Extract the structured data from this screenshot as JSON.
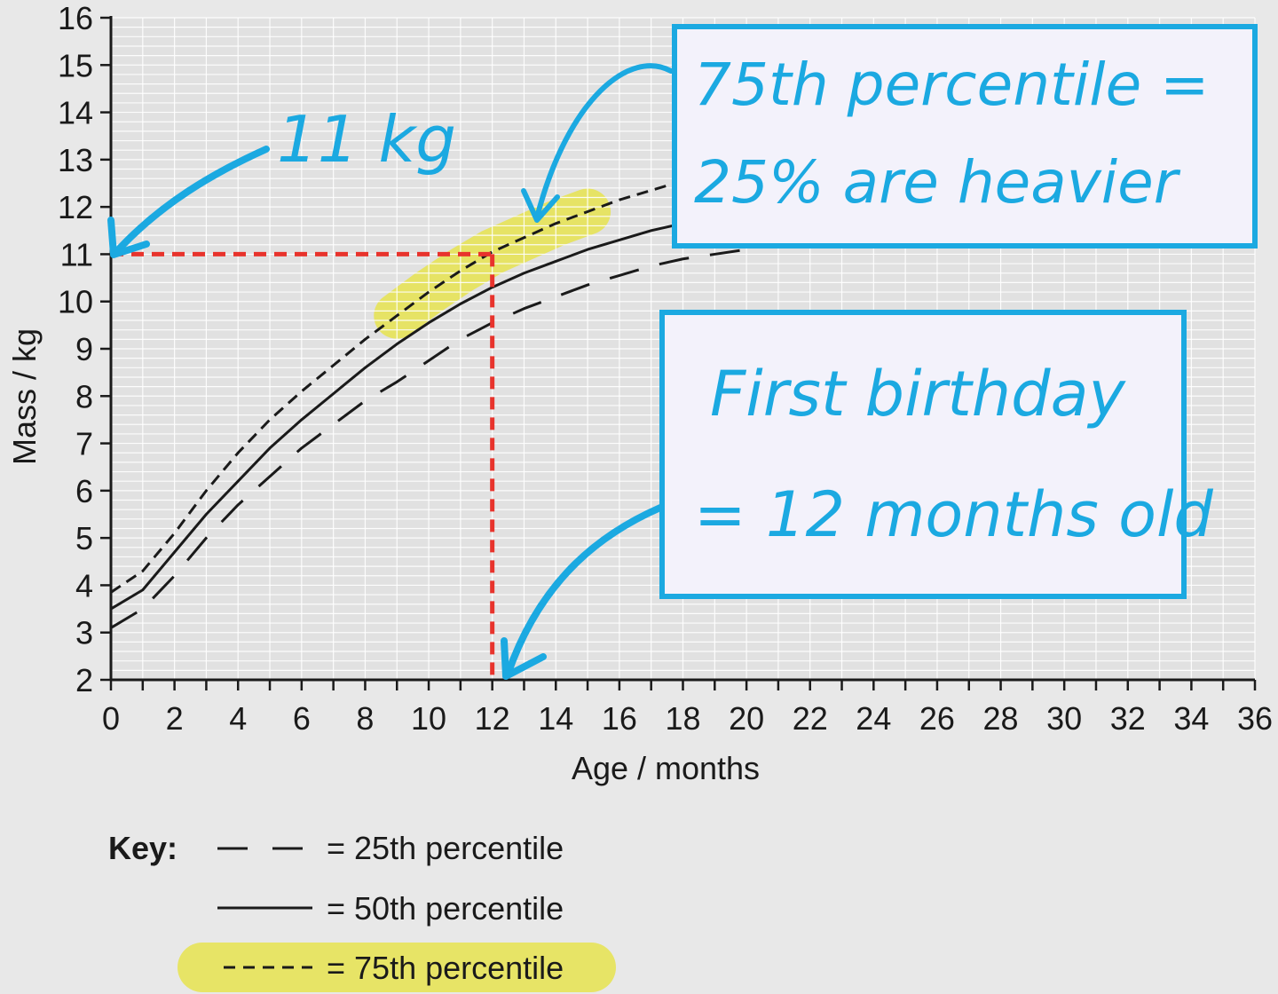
{
  "chart_data": {
    "type": "line",
    "title": "",
    "xlabel": "Age / months",
    "ylabel": "Mass / kg",
    "xlim": [
      0,
      36
    ],
    "ylim": [
      2,
      16
    ],
    "x_ticks": [
      0,
      2,
      4,
      6,
      8,
      10,
      12,
      14,
      16,
      18,
      20,
      22,
      24,
      26,
      28,
      30,
      32,
      34,
      36
    ],
    "y_ticks": [
      2,
      3,
      4,
      5,
      6,
      7,
      8,
      9,
      10,
      11,
      12,
      13,
      14,
      15,
      16
    ],
    "grid": true,
    "series": [
      {
        "name": "25th percentile",
        "style": "long-dash",
        "x": [
          0,
          1,
          2,
          3,
          4,
          5,
          6,
          7,
          8,
          9,
          10,
          11,
          12,
          13,
          14,
          15,
          16,
          17,
          18,
          19,
          20
        ],
        "y": [
          3.1,
          3.5,
          4.2,
          5.0,
          5.7,
          6.3,
          6.9,
          7.4,
          7.9,
          8.3,
          8.75,
          9.2,
          9.55,
          9.85,
          10.1,
          10.35,
          10.55,
          10.75,
          10.9,
          11.0,
          11.1
        ]
      },
      {
        "name": "50th percentile",
        "style": "solid",
        "x": [
          0,
          1,
          2,
          3,
          4,
          5,
          6,
          7,
          8,
          9,
          10,
          11,
          12,
          13,
          14,
          15,
          16,
          17,
          18
        ],
        "y": [
          3.5,
          3.9,
          4.7,
          5.5,
          6.2,
          6.9,
          7.5,
          8.05,
          8.6,
          9.1,
          9.55,
          9.95,
          10.3,
          10.6,
          10.85,
          11.1,
          11.3,
          11.5,
          11.65
        ]
      },
      {
        "name": "75th percentile",
        "style": "short-dash",
        "x": [
          0,
          1,
          2,
          3,
          4,
          5,
          6,
          7,
          8,
          9,
          10,
          11,
          12,
          13,
          14,
          15,
          16,
          17,
          18
        ],
        "y": [
          3.85,
          4.3,
          5.1,
          6.0,
          6.8,
          7.5,
          8.1,
          8.65,
          9.2,
          9.7,
          10.2,
          10.65,
          11.05,
          11.35,
          11.65,
          11.9,
          12.15,
          12.35,
          12.55
        ]
      }
    ],
    "reference_point": {
      "x": 12,
      "y": 11
    },
    "key": {
      "title": "Key:",
      "entries": [
        {
          "style": "long-dash",
          "label": "= 25th percentile"
        },
        {
          "style": "solid",
          "label": "= 50th percentile"
        },
        {
          "style": "short-dash",
          "label": "= 75th percentile",
          "highlighted": true
        }
      ]
    },
    "annotations": {
      "mass_note": "11 kg",
      "percentile_note_line1": "75th percentile =",
      "percentile_note_line2": "25% are heavier",
      "birthday_note_line1": "First birthday",
      "birthday_note_line2": "= 12 months old"
    },
    "colors": {
      "background": "#e8e8e8",
      "plot_background": "#e1e1e1",
      "grid": "#ffffff",
      "curve": "#1a1a1a",
      "reference_line": "#e8332c",
      "annotation": "#1ba9e1",
      "highlight": "#e6e34f",
      "note_box_fill": "#f3f2fb"
    }
  }
}
